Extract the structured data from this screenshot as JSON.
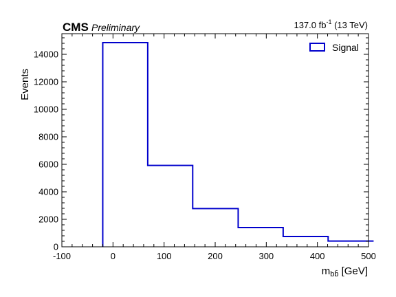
{
  "chart_data": {
    "type": "histogram",
    "bin_edges": [
      -20,
      68,
      156,
      245,
      333,
      421,
      510
    ],
    "values": [
      14850,
      5920,
      2780,
      1400,
      750,
      420
    ],
    "series": [
      {
        "name": "Signal",
        "color": "#0000cc"
      }
    ],
    "xlim": [
      -100,
      500
    ],
    "ylim": [
      0,
      15500
    ],
    "xticks": [
      -100,
      0,
      100,
      200,
      300,
      400,
      500
    ],
    "yticks": [
      0,
      2000,
      4000,
      6000,
      8000,
      10000,
      12000,
      14000
    ],
    "ylabel": "Events",
    "legend_position": "top-right"
  },
  "header": {
    "experiment": "CMS",
    "status": "Preliminary",
    "lumi_prefix": "137.0 fb",
    "lumi_exp": "-1",
    "lumi_suffix": " (13 TeV)"
  },
  "xlabel": {
    "base": "m",
    "sub": "bb̄",
    "unit": " [GeV]"
  }
}
